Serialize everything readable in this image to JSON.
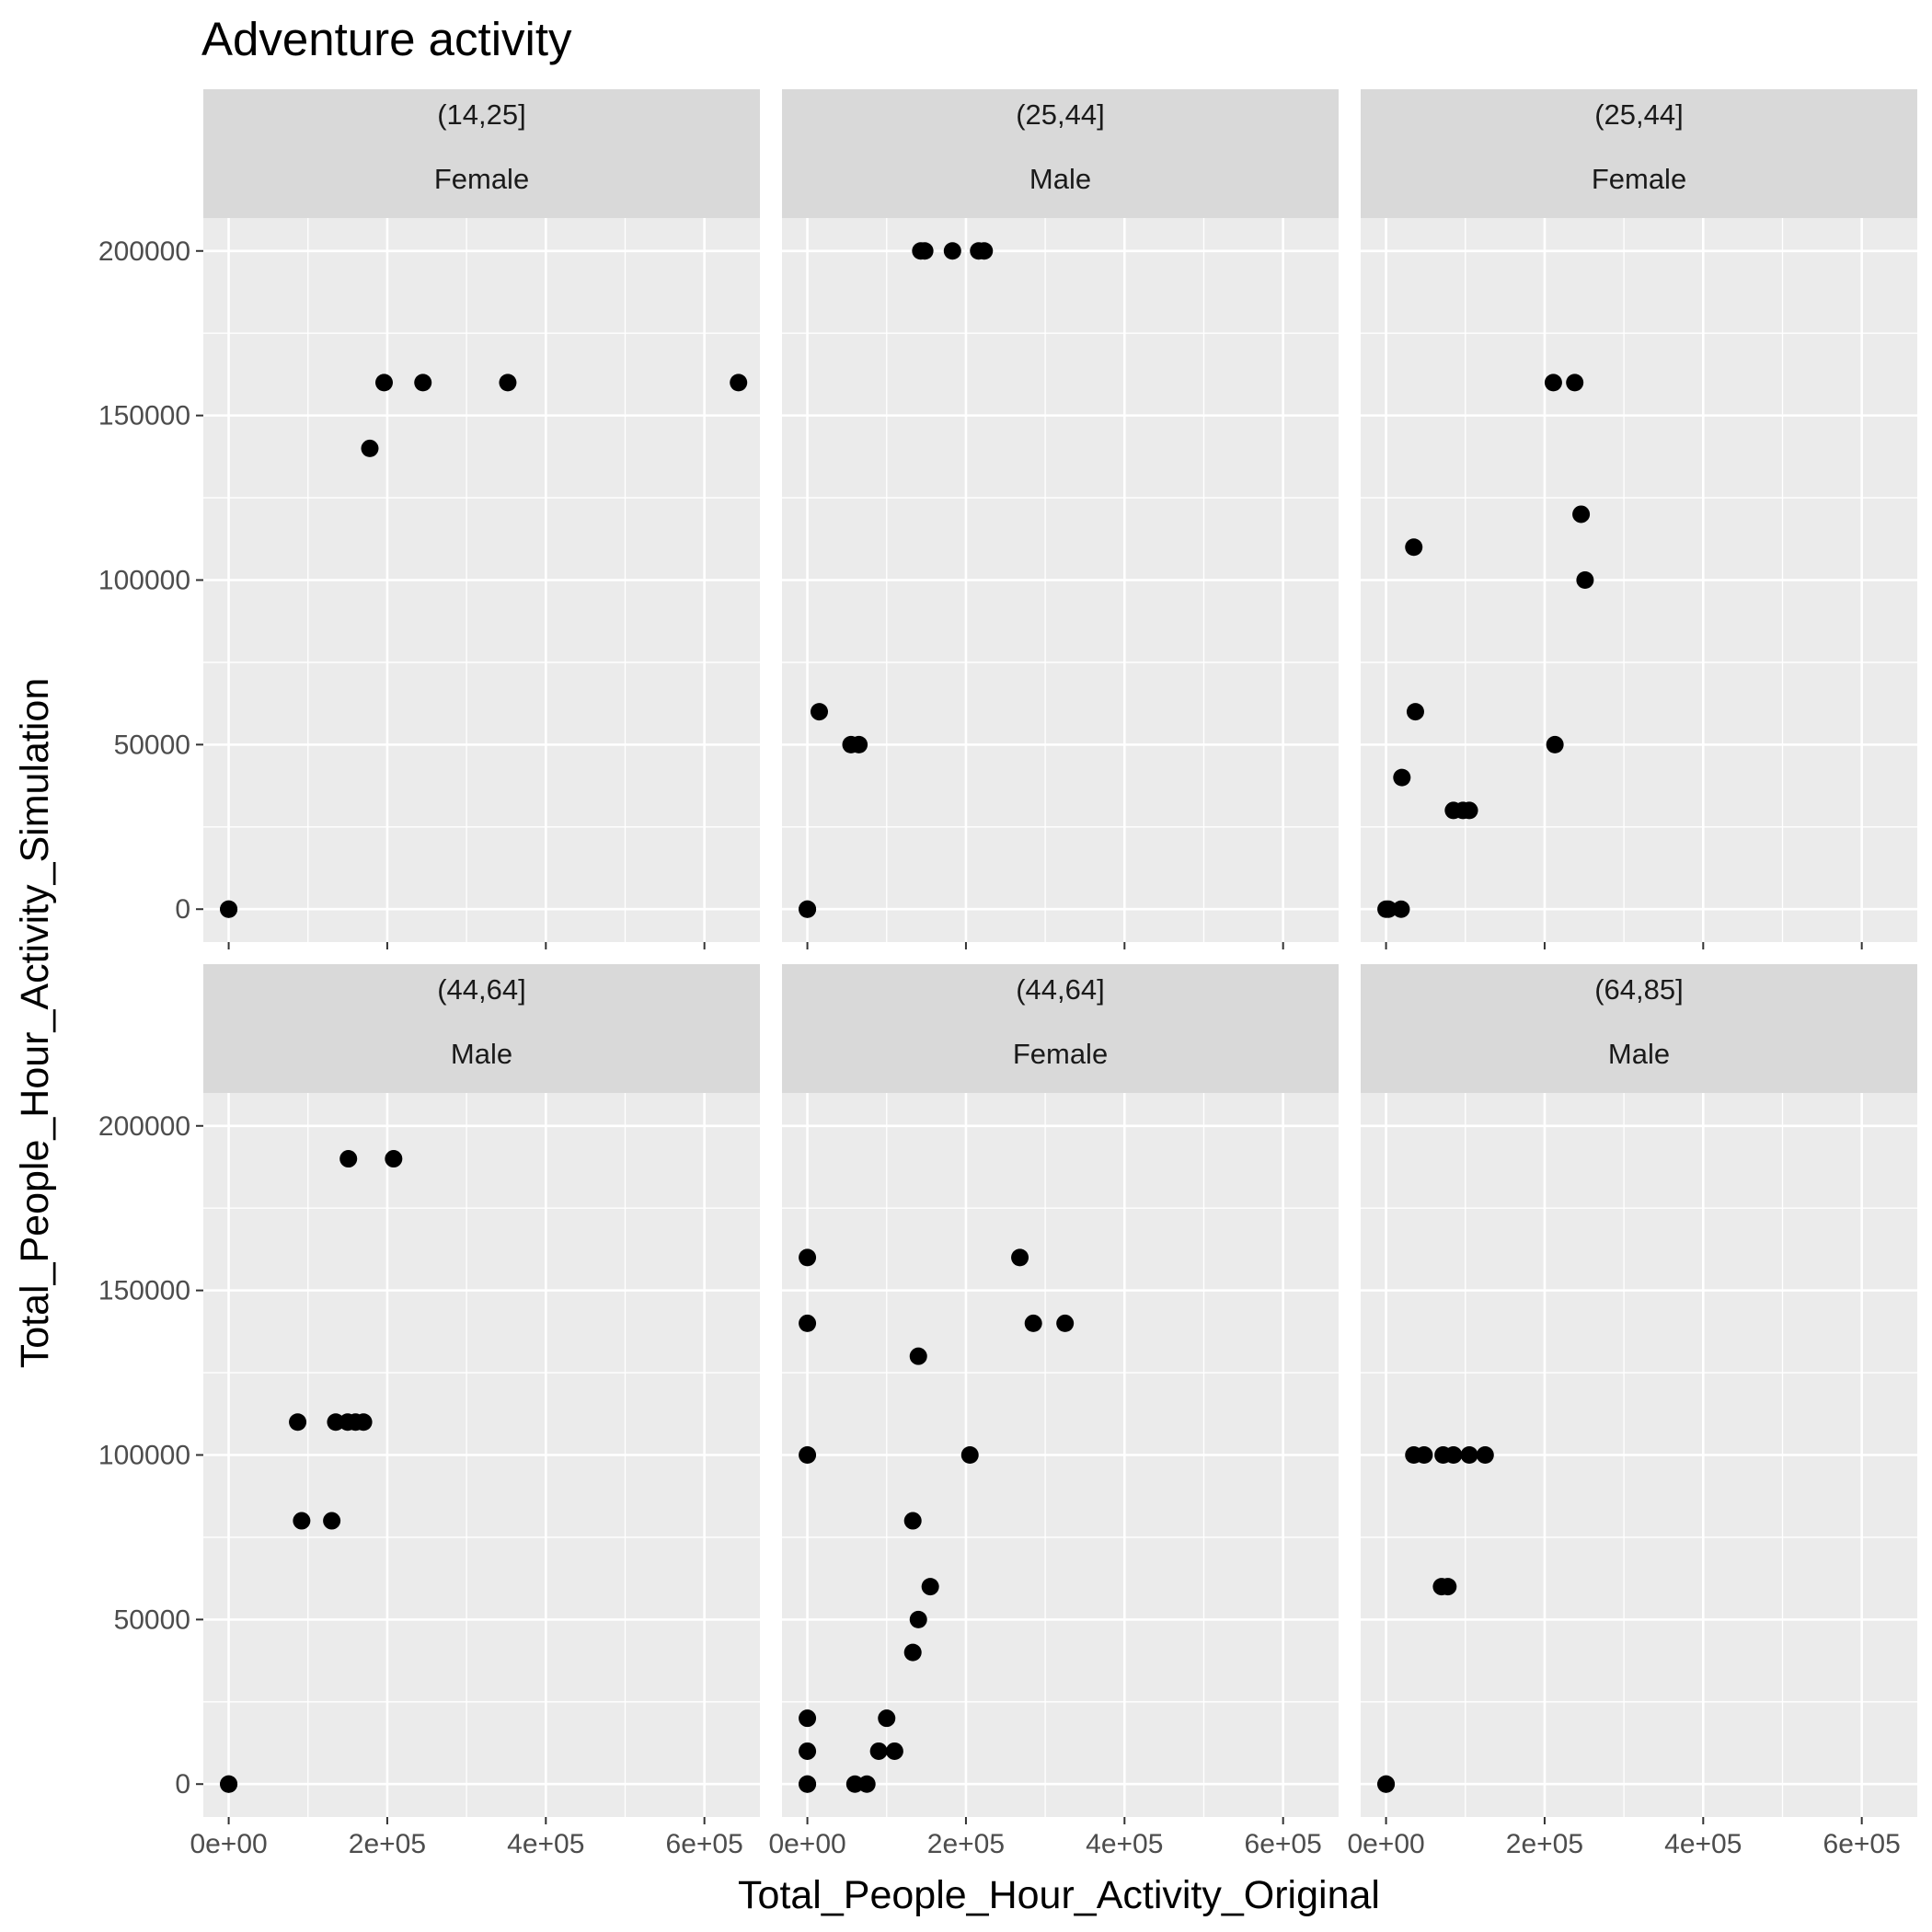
{
  "chart_data": {
    "type": "scatter",
    "title": "Adventure activity",
    "xlabel": "Total_People_Hour_Activity_Original",
    "ylabel": "Total_People_Hour_Activity_Simulation",
    "xlim": [
      -32000,
      670000
    ],
    "ylim": [
      -10000,
      210000
    ],
    "x_ticks": [
      0,
      200000,
      400000,
      600000
    ],
    "x_tick_labels": [
      "0e+00",
      "2e+05",
      "4e+05",
      "6e+05"
    ],
    "x_minor_ticks": [
      100000,
      300000,
      500000
    ],
    "y_ticks": [
      0,
      50000,
      100000,
      150000,
      200000
    ],
    "y_tick_labels": [
      "0",
      "50000",
      "100000",
      "150000",
      "200000"
    ],
    "y_minor_ticks": [
      25000,
      75000,
      125000,
      175000
    ],
    "grid": true,
    "facets": [
      {
        "strips": [
          "(14,25]",
          "Female"
        ],
        "points": [
          [
            0,
            0
          ],
          [
            0,
            0
          ],
          [
            178000,
            140000
          ],
          [
            196000,
            160000
          ],
          [
            245000,
            160000
          ],
          [
            352000,
            160000
          ],
          [
            643000,
            160000
          ]
        ]
      },
      {
        "strips": [
          "(25,44]",
          "Male"
        ],
        "points": [
          [
            0,
            0
          ],
          [
            0,
            0
          ],
          [
            15000,
            60000
          ],
          [
            55000,
            50000
          ],
          [
            65000,
            50000
          ],
          [
            143000,
            200000
          ],
          [
            148000,
            200000
          ],
          [
            183000,
            200000
          ],
          [
            216000,
            200000
          ],
          [
            223000,
            200000
          ]
        ]
      },
      {
        "strips": [
          "(25,44]",
          "Female"
        ],
        "points": [
          [
            0,
            0
          ],
          [
            3000,
            0
          ],
          [
            19000,
            0
          ],
          [
            20000,
            40000
          ],
          [
            35000,
            110000
          ],
          [
            37000,
            60000
          ],
          [
            85000,
            30000
          ],
          [
            97000,
            30000
          ],
          [
            105000,
            30000
          ],
          [
            211000,
            160000
          ],
          [
            213000,
            50000
          ],
          [
            238000,
            160000
          ],
          [
            246000,
            120000
          ],
          [
            251000,
            100000
          ]
        ]
      },
      {
        "strips": [
          "(44,64]",
          "Male"
        ],
        "points": [
          [
            0,
            0
          ],
          [
            0,
            0
          ],
          [
            87000,
            110000
          ],
          [
            92000,
            80000
          ],
          [
            135000,
            110000
          ],
          [
            130000,
            80000
          ],
          [
            150000,
            110000
          ],
          [
            151000,
            190000
          ],
          [
            160000,
            110000
          ],
          [
            170000,
            110000
          ],
          [
            208000,
            190000
          ]
        ]
      },
      {
        "strips": [
          "(44,64]",
          "Female"
        ],
        "points": [
          [
            0,
            0
          ],
          [
            0,
            0
          ],
          [
            0,
            10000
          ],
          [
            0,
            20000
          ],
          [
            0,
            100000
          ],
          [
            0,
            140000
          ],
          [
            0,
            160000
          ],
          [
            60000,
            0
          ],
          [
            75000,
            0
          ],
          [
            90000,
            10000
          ],
          [
            100000,
            20000
          ],
          [
            110000,
            10000
          ],
          [
            133000,
            80000
          ],
          [
            133000,
            40000
          ],
          [
            140000,
            50000
          ],
          [
            140000,
            130000
          ],
          [
            155000,
            60000
          ],
          [
            205000,
            100000
          ],
          [
            268000,
            160000
          ],
          [
            285000,
            140000
          ],
          [
            325000,
            140000
          ]
        ]
      },
      {
        "strips": [
          "(64,85]",
          "Male"
        ],
        "points": [
          [
            0,
            0
          ],
          [
            0,
            0
          ],
          [
            35000,
            100000
          ],
          [
            48000,
            100000
          ],
          [
            70000,
            60000
          ],
          [
            78000,
            60000
          ],
          [
            72000,
            100000
          ],
          [
            85000,
            100000
          ],
          [
            105000,
            100000
          ],
          [
            125000,
            100000
          ]
        ]
      }
    ]
  }
}
